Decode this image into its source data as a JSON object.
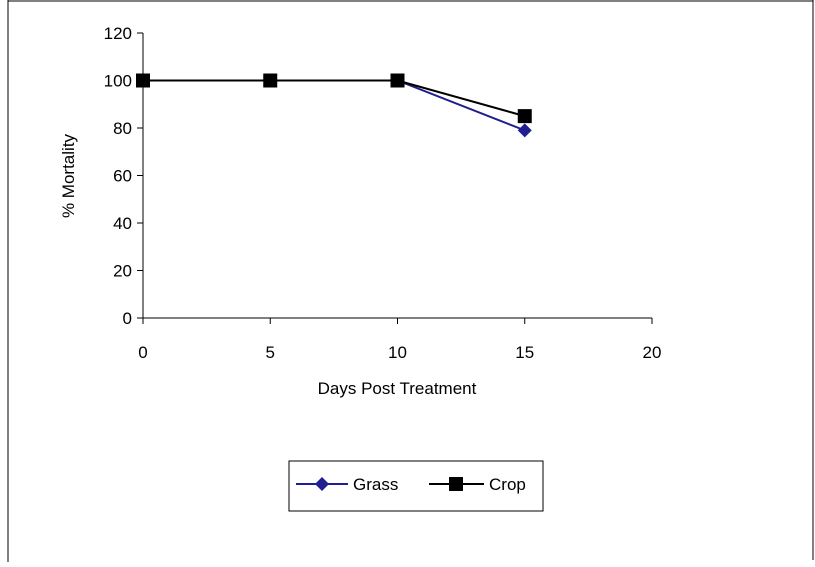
{
  "chart_data": {
    "type": "line",
    "title": "",
    "xlabel": "Days Post Treatment",
    "ylabel": "% Mortality",
    "xlim": [
      0,
      20
    ],
    "ylim": [
      0,
      120
    ],
    "x_ticks": [
      0,
      5,
      10,
      15,
      20
    ],
    "y_ticks": [
      0,
      20,
      40,
      60,
      80,
      100,
      120
    ],
    "grid": false,
    "legend_position": "bottom",
    "series": [
      {
        "name": "Grass",
        "color": "#1f1f8f",
        "marker": "diamond",
        "x": [
          0,
          5,
          10,
          15
        ],
        "y": [
          100,
          100,
          100,
          79
        ]
      },
      {
        "name": "Crop",
        "color": "#000000",
        "marker": "square",
        "x": [
          0,
          5,
          10,
          15
        ],
        "y": [
          100,
          100,
          100,
          85
        ]
      }
    ]
  }
}
